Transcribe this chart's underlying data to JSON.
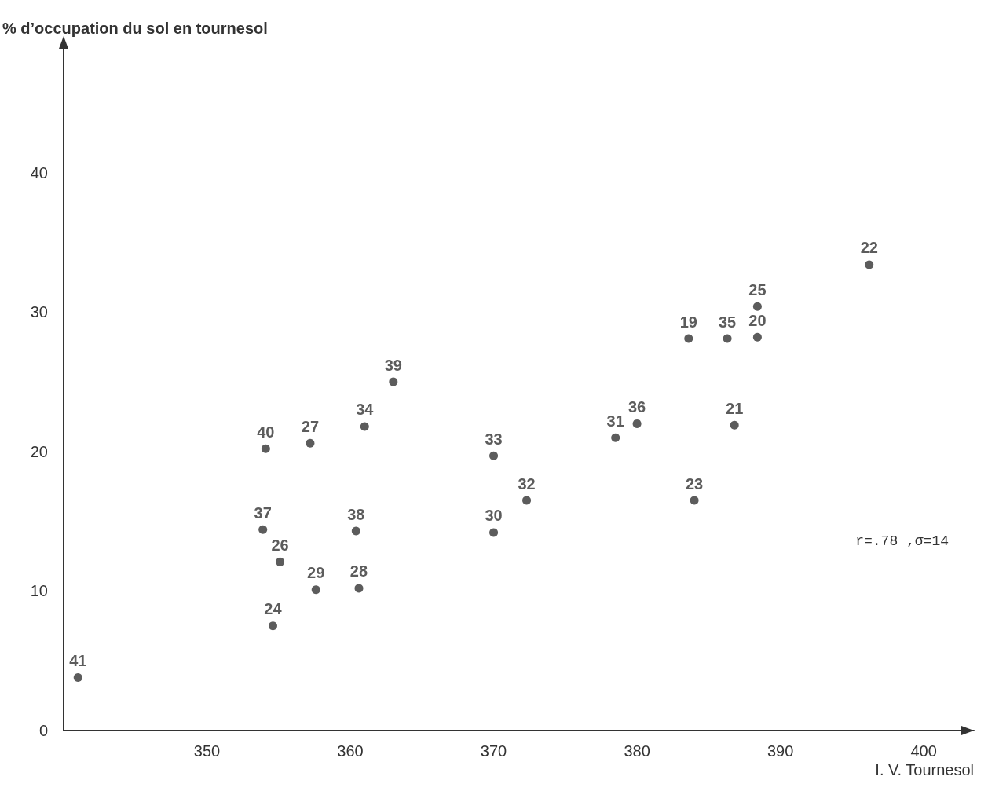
{
  "chart_data": {
    "type": "scatter",
    "xlabel": "I. V. Tournesol",
    "ylabel": "% d’occupation du sol en tournesol",
    "series": [
      {
        "name": "41",
        "x": [
          341.0
        ],
        "values": [
          3.8
        ]
      },
      {
        "name": "24",
        "x": [
          354.6
        ],
        "values": [
          7.5
        ]
      },
      {
        "name": "29",
        "x": [
          357.6
        ],
        "values": [
          10.1
        ]
      },
      {
        "name": "28",
        "x": [
          360.6
        ],
        "values": [
          10.2
        ]
      },
      {
        "name": "26",
        "x": [
          355.1
        ],
        "values": [
          12.1
        ]
      },
      {
        "name": "37",
        "x": [
          353.9
        ],
        "values": [
          14.4
        ]
      },
      {
        "name": "38",
        "x": [
          360.4
        ],
        "values": [
          14.3
        ]
      },
      {
        "name": "30",
        "x": [
          370.0
        ],
        "values": [
          14.2
        ]
      },
      {
        "name": "32",
        "x": [
          372.3
        ],
        "values": [
          16.5
        ]
      },
      {
        "name": "23",
        "x": [
          384.0
        ],
        "values": [
          16.5
        ]
      },
      {
        "name": "40",
        "x": [
          354.1
        ],
        "values": [
          20.2
        ]
      },
      {
        "name": "27",
        "x": [
          357.2
        ],
        "values": [
          20.6
        ]
      },
      {
        "name": "33",
        "x": [
          370.0
        ],
        "values": [
          19.7
        ]
      },
      {
        "name": "34",
        "x": [
          361.0
        ],
        "values": [
          21.8
        ]
      },
      {
        "name": "39",
        "x": [
          363.0
        ],
        "values": [
          25.0
        ]
      },
      {
        "name": "31",
        "x": [
          378.5
        ],
        "values": [
          21.0
        ]
      },
      {
        "name": "36",
        "x": [
          380.0
        ],
        "values": [
          22.0
        ]
      },
      {
        "name": "21",
        "x": [
          386.8
        ],
        "values": [
          21.9
        ]
      },
      {
        "name": "19",
        "x": [
          383.6
        ],
        "values": [
          28.1
        ]
      },
      {
        "name": "35",
        "x": [
          386.3
        ],
        "values": [
          28.1
        ]
      },
      {
        "name": "20",
        "x": [
          388.4
        ],
        "values": [
          28.2
        ]
      },
      {
        "name": "25",
        "x": [
          388.4
        ],
        "values": [
          30.4
        ]
      },
      {
        "name": "22",
        "x": [
          396.2
        ],
        "values": [
          33.4
        ]
      }
    ],
    "color": "#333333",
    "marker": "circle",
    "grid": false,
    "xlim": [
      340,
      403.5
    ],
    "xticks": [
      350,
      360,
      370,
      380,
      390,
      400
    ],
    "ylim": [
      0,
      49
    ],
    "yticks": [
      0,
      10,
      20,
      30,
      40
    ],
    "annotations": [
      "r=.78 ,σ=14"
    ]
  }
}
